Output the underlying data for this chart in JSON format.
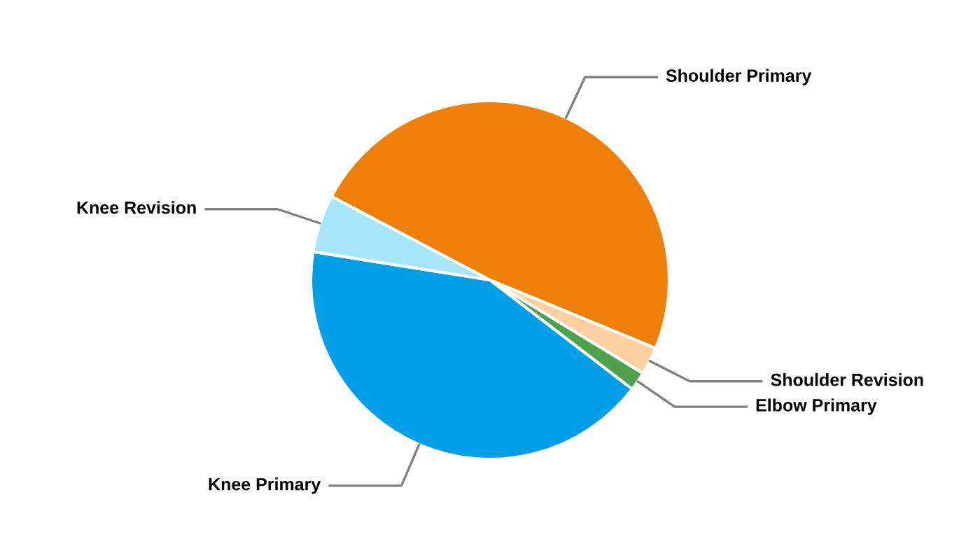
{
  "chart_data": {
    "type": "pie",
    "categories": [
      "Shoulder Primary",
      "Shoulder Revision",
      "Elbow Primary",
      "Knee Primary",
      "Knee Revision"
    ],
    "values": [
      48.5,
      2.5,
      1.7,
      42.1,
      5.2
    ],
    "colors": [
      "#f07f09",
      "#fdd0a2",
      "#4ea24e",
      "#009fe8",
      "#a6e6fb"
    ],
    "legend": false
  }
}
